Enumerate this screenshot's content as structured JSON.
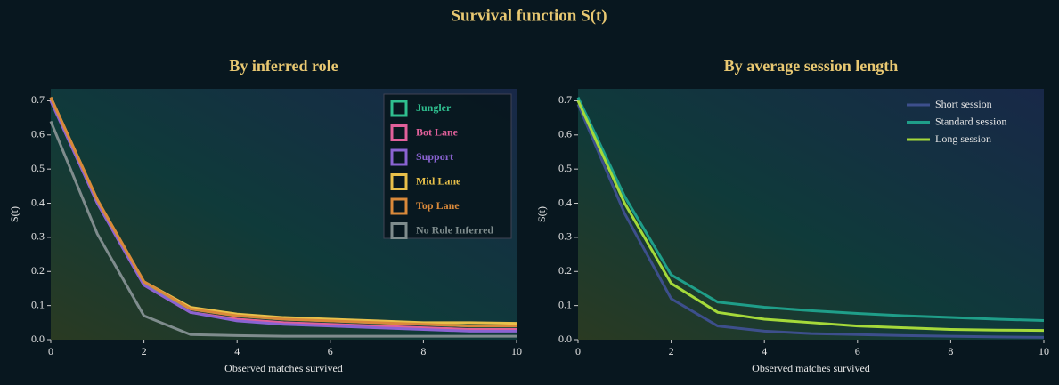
{
  "title": "Survival function S(t)",
  "chart_data": [
    {
      "type": "line",
      "title": "By inferred role",
      "xlabel": "Observed matches survived",
      "ylabel": "S(t)",
      "x": [
        0,
        1,
        2,
        3,
        4,
        5,
        6,
        7,
        8,
        9,
        10
      ],
      "xlim": [
        0,
        10
      ],
      "xticks": [
        0,
        2,
        4,
        6,
        8,
        10
      ],
      "ylim": [
        0,
        0.735
      ],
      "yticks": [
        {
          "value": 0,
          "label": "0.0"
        },
        0.1,
        0.2,
        0.3,
        0.4,
        0.5,
        0.6,
        0.7
      ],
      "legend": "upper right",
      "legend_frame": true,
      "series": [
        {
          "name": "Jungler",
          "color": "#2fbf8f",
          "values": [
            0.71,
            0.4,
            0.165,
            0.09,
            0.07,
            0.06,
            0.055,
            0.05,
            0.045,
            0.04,
            0.04
          ]
        },
        {
          "name": "Bot Lane",
          "color": "#e0609a",
          "values": [
            0.7,
            0.4,
            0.16,
            0.08,
            0.06,
            0.05,
            0.045,
            0.04,
            0.035,
            0.03,
            0.03
          ]
        },
        {
          "name": "Support",
          "color": "#8a63d2",
          "values": [
            0.7,
            0.4,
            0.16,
            0.08,
            0.055,
            0.045,
            0.04,
            0.035,
            0.03,
            0.025,
            0.025
          ]
        },
        {
          "name": "Mid Lane",
          "color": "#e8c04a",
          "values": [
            0.71,
            0.41,
            0.17,
            0.095,
            0.075,
            0.065,
            0.06,
            0.055,
            0.05,
            0.05,
            0.048
          ]
        },
        {
          "name": "Top Lane",
          "color": "#d9893a",
          "values": [
            0.71,
            0.41,
            0.17,
            0.09,
            0.07,
            0.06,
            0.055,
            0.05,
            0.045,
            0.04,
            0.04
          ]
        },
        {
          "name": "No Role Inferred",
          "color": "#7f8c8d",
          "values": [
            0.64,
            0.31,
            0.07,
            0.015,
            0.012,
            0.01,
            0.01,
            0.01,
            0.01,
            0.01,
            0.01
          ]
        }
      ]
    },
    {
      "type": "line",
      "title": "By average session length",
      "xlabel": "Observed matches survived",
      "ylabel": "S(t)",
      "x": [
        0,
        1,
        2,
        3,
        4,
        5,
        6,
        7,
        8,
        9,
        10
      ],
      "xlim": [
        0,
        10
      ],
      "xticks": [
        0,
        2,
        4,
        6,
        8,
        10
      ],
      "ylim": [
        0,
        0.735
      ],
      "yticks": [
        {
          "value": 0,
          "label": "0.0"
        },
        0.1,
        0.2,
        0.3,
        0.4,
        0.5,
        0.6,
        0.7
      ],
      "legend": "upper right",
      "legend_frame": false,
      "series": [
        {
          "name": "Short session",
          "color": "#3d4f8c",
          "values": [
            0.69,
            0.37,
            0.12,
            0.04,
            0.025,
            0.018,
            0.015,
            0.012,
            0.01,
            0.008,
            0.007
          ]
        },
        {
          "name": "Standard session",
          "color": "#1f9e89",
          "values": [
            0.71,
            0.42,
            0.19,
            0.11,
            0.095,
            0.085,
            0.077,
            0.07,
            0.065,
            0.06,
            0.056
          ]
        },
        {
          "name": "Long session",
          "color": "#a5d93a",
          "values": [
            0.7,
            0.4,
            0.165,
            0.08,
            0.06,
            0.05,
            0.04,
            0.035,
            0.03,
            0.028,
            0.027
          ]
        }
      ]
    }
  ]
}
